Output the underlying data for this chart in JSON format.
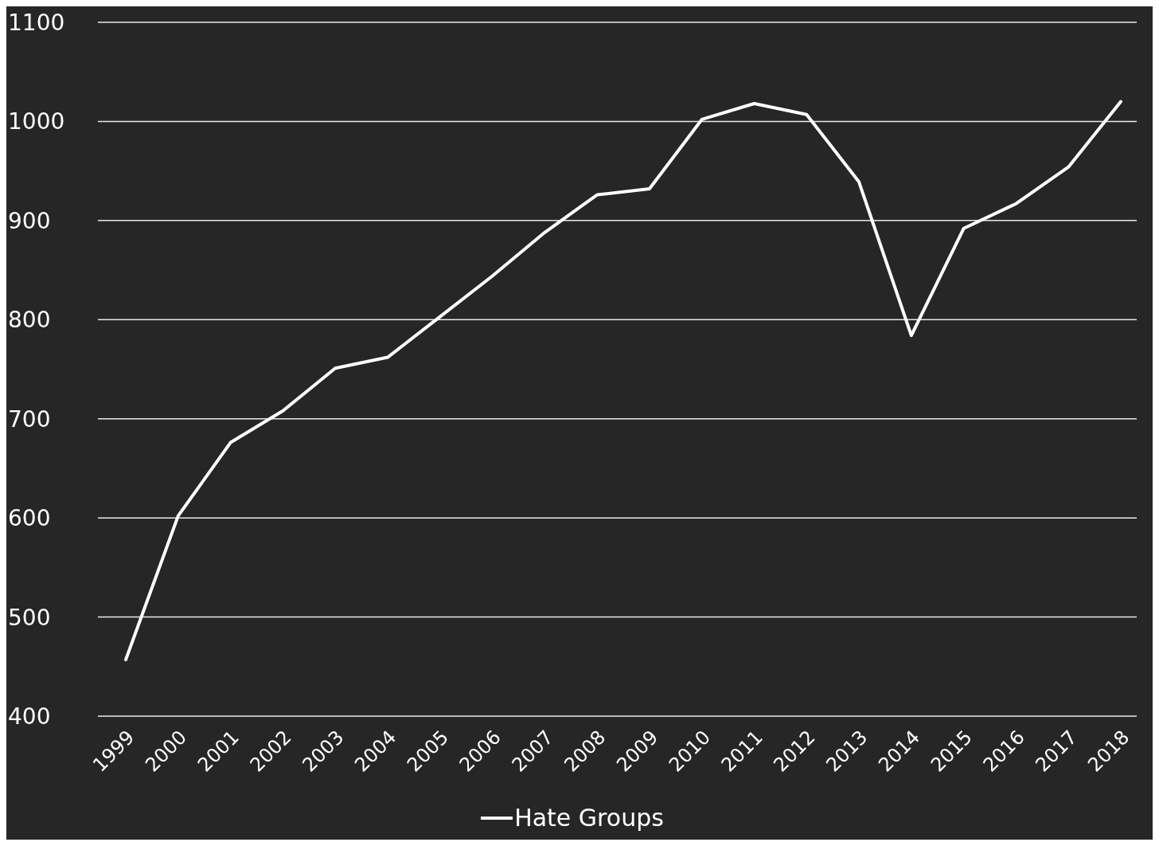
{
  "chart_data": {
    "type": "line",
    "categories": [
      "1999",
      "2000",
      "2001",
      "2002",
      "2003",
      "2004",
      "2005",
      "2006",
      "2007",
      "2008",
      "2009",
      "2010",
      "2011",
      "2012",
      "2013",
      "2014",
      "2015",
      "2016",
      "2017",
      "2018"
    ],
    "series": [
      {
        "name": "Hate Groups",
        "color": "#ffffff",
        "values": [
          457,
          602,
          676,
          708,
          751,
          762,
          803,
          844,
          888,
          926,
          932,
          1002,
          1018,
          1007,
          939,
          784,
          892,
          917,
          954,
          1020
        ]
      }
    ],
    "ylim": [
      400,
      1100
    ],
    "yticks": [
      400,
      500,
      600,
      700,
      800,
      900,
      1000,
      1100
    ],
    "grid": "y",
    "legend": "bottom"
  }
}
